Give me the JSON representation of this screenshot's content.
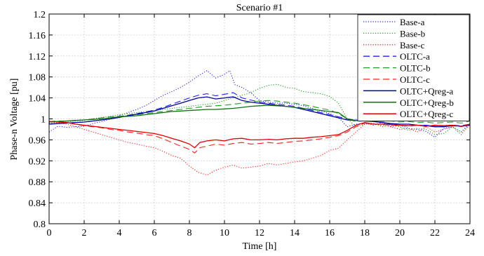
{
  "chart_data": {
    "type": "line",
    "title": "Scenario #1",
    "xlabel": "Time [h]",
    "ylabel": "Phase-n Voltage [pu]",
    "xlim": [
      0,
      24
    ],
    "ylim": [
      0.8,
      1.2
    ],
    "xticks": [
      0,
      2,
      4,
      6,
      8,
      10,
      12,
      14,
      16,
      18,
      20,
      22,
      24
    ],
    "yticks": [
      0.8,
      0.84,
      0.88,
      0.92,
      0.96,
      1,
      1.04,
      1.08,
      1.12,
      1.16,
      1.2
    ],
    "xtick_labels": [
      "0",
      "2",
      "4",
      "6",
      "8",
      "10",
      "12",
      "14",
      "16",
      "18",
      "20",
      "22",
      "24"
    ],
    "ytick_labels": [
      "0.8",
      "0.84",
      "0.88",
      "0.92",
      "0.96",
      "1",
      "1.04",
      "1.08",
      "1.12",
      "1.16",
      "1.2"
    ],
    "grid": true,
    "legend_position": "top-right",
    "series": [
      {
        "name": "Base-a",
        "color": "#2020ff",
        "style": "dotted",
        "x": [
          0,
          0.5,
          1,
          1.5,
          2,
          2.5,
          3,
          3.5,
          4,
          4.5,
          5,
          5.5,
          6,
          6.5,
          7,
          7.5,
          8,
          8.5,
          9,
          9.5,
          10,
          10.3,
          10.6,
          11,
          11.5,
          12,
          12.5,
          13,
          13.5,
          14,
          14.5,
          15,
          15.5,
          16,
          16.5,
          17,
          17.5,
          18,
          18.5,
          19,
          19.5,
          20,
          20.5,
          21,
          21.5,
          22,
          22.5,
          23,
          23.5,
          24
        ],
        "y": [
          0.975,
          0.986,
          0.984,
          0.985,
          0.986,
          0.991,
          0.995,
          1.0,
          1.006,
          1.012,
          1.018,
          1.025,
          1.035,
          1.045,
          1.052,
          1.06,
          1.07,
          1.082,
          1.092,
          1.078,
          1.085,
          1.092,
          1.065,
          1.06,
          1.05,
          1.035,
          1.032,
          1.03,
          1.03,
          1.028,
          1.025,
          1.02,
          1.015,
          1.01,
          1.003,
          0.985,
          0.99,
          0.992,
          0.988,
          0.993,
          0.985,
          0.988,
          0.982,
          0.98,
          0.976,
          0.965,
          0.982,
          0.985,
          0.975,
          0.992
        ]
      },
      {
        "name": "Base-b",
        "color": "#20a020",
        "style": "dotted",
        "x": [
          0,
          0.5,
          1,
          1.5,
          2,
          2.5,
          3,
          3.5,
          4,
          4.5,
          5,
          5.5,
          6,
          6.5,
          7,
          7.5,
          8,
          8.5,
          9,
          9.5,
          10,
          10.5,
          11,
          11.5,
          12,
          12.5,
          13,
          13.5,
          14,
          14.5,
          15,
          15.5,
          16,
          16.5,
          17,
          17.5,
          18,
          18.5,
          19,
          19.5,
          20,
          20.5,
          21,
          21.5,
          22,
          22.5,
          23,
          23.5,
          24
        ],
        "y": [
          0.99,
          0.995,
          0.994,
          0.996,
          0.997,
          1.0,
          1.003,
          1.005,
          1.008,
          1.01,
          1.012,
          1.014,
          1.016,
          1.018,
          1.02,
          1.022,
          1.024,
          1.026,
          1.028,
          1.03,
          1.035,
          1.04,
          1.045,
          1.05,
          1.058,
          1.064,
          1.066,
          1.06,
          1.058,
          1.052,
          1.05,
          1.048,
          1.043,
          1.03,
          1.0,
          0.985,
          0.99,
          0.992,
          0.985,
          0.99,
          0.985,
          0.978,
          0.982,
          0.98,
          0.97,
          0.972,
          0.985,
          0.975,
          0.99
        ]
      },
      {
        "name": "Base-c",
        "color": "#ff2020",
        "style": "dotted",
        "x": [
          0,
          0.5,
          1,
          1.5,
          2,
          2.5,
          3,
          3.5,
          4,
          4.5,
          5,
          5.5,
          6,
          6.5,
          7,
          7.5,
          8,
          8.5,
          9,
          9.5,
          10,
          10.5,
          11,
          11.5,
          12,
          12.5,
          13,
          13.5,
          14,
          14.5,
          15,
          15.5,
          16,
          16.5,
          17,
          17.5,
          18,
          18.5,
          19,
          19.5,
          20,
          20.5,
          21,
          21.5,
          22,
          22.5,
          23,
          23.5,
          24
        ],
        "y": [
          0.992,
          0.993,
          0.99,
          0.985,
          0.98,
          0.975,
          0.97,
          0.965,
          0.96,
          0.955,
          0.952,
          0.948,
          0.945,
          0.938,
          0.93,
          0.925,
          0.91,
          0.898,
          0.893,
          0.902,
          0.908,
          0.912,
          0.906,
          0.908,
          0.91,
          0.915,
          0.912,
          0.915,
          0.918,
          0.92,
          0.925,
          0.93,
          0.94,
          0.944,
          0.96,
          0.975,
          0.99,
          0.99,
          0.988,
          0.985,
          0.98,
          0.982,
          0.975,
          0.985,
          0.975,
          0.98,
          0.985,
          0.97,
          0.99
        ]
      },
      {
        "name": "OLTC-a",
        "color": "#2020ff",
        "style": "dashed",
        "x": [
          0,
          0.5,
          1,
          1.5,
          2,
          2.5,
          3,
          3.5,
          4,
          4.5,
          5,
          5.5,
          6,
          6.5,
          7,
          7.5,
          8,
          8.5,
          9,
          9.5,
          10,
          10.5,
          11,
          11.5,
          12,
          12.5,
          13,
          13.5,
          14,
          14.5,
          15,
          15.5,
          16,
          16.5,
          17,
          17.5,
          18,
          18.5,
          19,
          19.5,
          20,
          20.5,
          21,
          21.5,
          22,
          22.5,
          23,
          23.5,
          24
        ],
        "y": [
          0.99,
          0.991,
          0.992,
          0.993,
          0.994,
          0.996,
          0.998,
          1.0,
          1.004,
          1.007,
          1.01,
          1.013,
          1.017,
          1.022,
          1.028,
          1.034,
          1.04,
          1.045,
          1.048,
          1.044,
          1.047,
          1.05,
          1.04,
          1.036,
          1.032,
          1.03,
          1.028,
          1.026,
          1.024,
          1.02,
          1.016,
          1.012,
          1.008,
          1.004,
          1.0,
          0.998,
          0.996,
          0.995,
          0.993,
          0.99,
          0.99,
          0.99,
          0.988,
          0.988,
          0.986,
          0.985,
          0.988,
          0.987,
          0.99
        ]
      },
      {
        "name": "OLTC-b",
        "color": "#20a020",
        "style": "dashed",
        "x": [
          0,
          0.5,
          1,
          1.5,
          2,
          2.5,
          3,
          3.5,
          4,
          4.5,
          5,
          5.5,
          6,
          6.5,
          7,
          7.5,
          8,
          8.5,
          9,
          9.5,
          10,
          10.5,
          11,
          11.5,
          12,
          12.5,
          13,
          13.5,
          14,
          14.5,
          15,
          15.5,
          16,
          16.5,
          17,
          17.5,
          18,
          18.5,
          19,
          19.5,
          20,
          20.5,
          21,
          21.5,
          22,
          22.5,
          23,
          23.5,
          24
        ],
        "y": [
          0.995,
          0.996,
          0.996,
          0.997,
          0.998,
          1.0,
          1.002,
          1.004,
          1.005,
          1.007,
          1.008,
          1.01,
          1.012,
          1.014,
          1.016,
          1.018,
          1.02,
          1.022,
          1.024,
          1.025,
          1.026,
          1.028,
          1.03,
          1.032,
          1.034,
          1.035,
          1.034,
          1.032,
          1.03,
          1.027,
          1.024,
          1.02,
          1.017,
          1.01,
          1.0,
          0.995,
          0.996,
          0.997,
          0.995,
          0.996,
          0.994,
          0.995,
          0.993,
          0.994,
          0.992,
          0.993,
          0.994,
          0.992,
          0.996
        ]
      },
      {
        "name": "OLTC-c",
        "color": "#ff2020",
        "style": "dashed",
        "x": [
          0,
          0.5,
          1,
          1.5,
          2,
          2.5,
          3,
          3.5,
          4,
          4.5,
          5,
          5.5,
          6,
          6.5,
          7,
          7.5,
          8,
          8.3,
          8.6,
          9,
          9.5,
          10,
          10.5,
          11,
          11.5,
          12,
          12.5,
          13,
          13.5,
          14,
          14.5,
          15,
          15.5,
          16,
          16.5,
          17,
          17.5,
          18,
          18.5,
          19,
          19.5,
          20,
          20.5,
          21,
          21.5,
          22,
          22.5,
          23,
          23.5,
          24
        ],
        "y": [
          0.995,
          0.994,
          0.993,
          0.99,
          0.987,
          0.985,
          0.983,
          0.98,
          0.978,
          0.975,
          0.973,
          0.97,
          0.968,
          0.962,
          0.955,
          0.948,
          0.942,
          0.935,
          0.945,
          0.948,
          0.952,
          0.95,
          0.953,
          0.955,
          0.952,
          0.953,
          0.955,
          0.953,
          0.955,
          0.957,
          0.958,
          0.96,
          0.962,
          0.965,
          0.968,
          0.975,
          0.985,
          0.992,
          0.99,
          0.99,
          0.988,
          0.988,
          0.986,
          0.988,
          0.985,
          0.988,
          0.986,
          0.987,
          0.985,
          0.99
        ]
      },
      {
        "name": "OLTC+Qreg-a",
        "color": "#0000a0",
        "style": "solid",
        "x": [
          0,
          0.5,
          1,
          1.5,
          2,
          2.5,
          3,
          3.5,
          4,
          4.5,
          5,
          5.5,
          6,
          6.5,
          7,
          7.5,
          8,
          8.5,
          9,
          9.5,
          10,
          10.5,
          11,
          11.5,
          12,
          12.5,
          13,
          13.5,
          14,
          14.5,
          15,
          15.5,
          16,
          16.5,
          17,
          17.5,
          18,
          18.5,
          19,
          19.5,
          20,
          20.5,
          21,
          21.5,
          22,
          22.5,
          23,
          23.5,
          24
        ],
        "y": [
          0.99,
          0.991,
          0.992,
          0.993,
          0.994,
          0.996,
          0.998,
          1.0,
          1.003,
          1.006,
          1.009,
          1.012,
          1.015,
          1.02,
          1.025,
          1.03,
          1.035,
          1.04,
          1.042,
          1.038,
          1.04,
          1.042,
          1.035,
          1.032,
          1.03,
          1.028,
          1.026,
          1.024,
          1.022,
          1.018,
          1.014,
          1.01,
          1.006,
          1.002,
          0.998,
          0.997,
          0.996,
          0.995,
          0.993,
          0.991,
          0.99,
          0.99,
          0.988,
          0.987,
          0.985,
          0.985,
          0.987,
          0.986,
          0.988
        ]
      },
      {
        "name": "OLTC+Qreg-b",
        "color": "#107010",
        "style": "solid",
        "x": [
          0,
          0.5,
          1,
          1.5,
          2,
          2.5,
          3,
          3.5,
          4,
          4.5,
          5,
          5.5,
          6,
          6.5,
          7,
          7.5,
          8,
          8.5,
          9,
          9.5,
          10,
          10.5,
          11,
          11.5,
          12,
          12.5,
          13,
          13.5,
          14,
          14.5,
          15,
          15.5,
          16,
          16.5,
          17,
          17.5,
          18,
          18.5,
          19,
          19.5,
          20,
          20.5,
          21,
          21.5,
          22,
          22.5,
          23,
          23.5,
          24
        ],
        "y": [
          0.994,
          0.995,
          0.996,
          0.997,
          0.998,
          0.999,
          1.0,
          1.002,
          1.004,
          1.005,
          1.006,
          1.008,
          1.01,
          1.012,
          1.014,
          1.015,
          1.016,
          1.017,
          1.018,
          1.018,
          1.019,
          1.02,
          1.022,
          1.024,
          1.025,
          1.026,
          1.025,
          1.024,
          1.022,
          1.02,
          1.018,
          1.016,
          1.014,
          1.012,
          1.0,
          0.997,
          0.998,
          0.999,
          0.998,
          0.999,
          0.997,
          0.998,
          1.003,
          0.999,
          0.998,
          0.997,
          0.999,
          0.997,
          0.998
        ]
      },
      {
        "name": "OLTC+Qreg-c",
        "color": "#e00000",
        "style": "solid",
        "x": [
          0,
          0.5,
          1,
          1.5,
          2,
          2.5,
          3,
          3.5,
          4,
          4.5,
          5,
          5.5,
          6,
          6.5,
          7,
          7.5,
          8,
          8.3,
          8.6,
          9,
          9.5,
          10,
          10.5,
          11,
          11.5,
          12,
          12.5,
          13,
          13.5,
          14,
          14.5,
          15,
          15.5,
          16,
          16.5,
          17,
          17.5,
          18,
          18.5,
          19,
          19.5,
          20,
          20.5,
          21,
          21.5,
          22,
          22.5,
          23,
          23.5,
          24
        ],
        "y": [
          0.995,
          0.994,
          0.993,
          0.99,
          0.988,
          0.986,
          0.984,
          0.982,
          0.98,
          0.978,
          0.976,
          0.974,
          0.972,
          0.968,
          0.963,
          0.958,
          0.952,
          0.945,
          0.955,
          0.958,
          0.96,
          0.958,
          0.962,
          0.963,
          0.96,
          0.96,
          0.961,
          0.96,
          0.962,
          0.963,
          0.963,
          0.965,
          0.966,
          0.968,
          0.97,
          0.978,
          0.988,
          0.993,
          0.99,
          0.99,
          0.989,
          0.988,
          0.987,
          0.988,
          0.986,
          0.988,
          0.987,
          0.988,
          0.986,
          0.99
        ]
      }
    ]
  }
}
